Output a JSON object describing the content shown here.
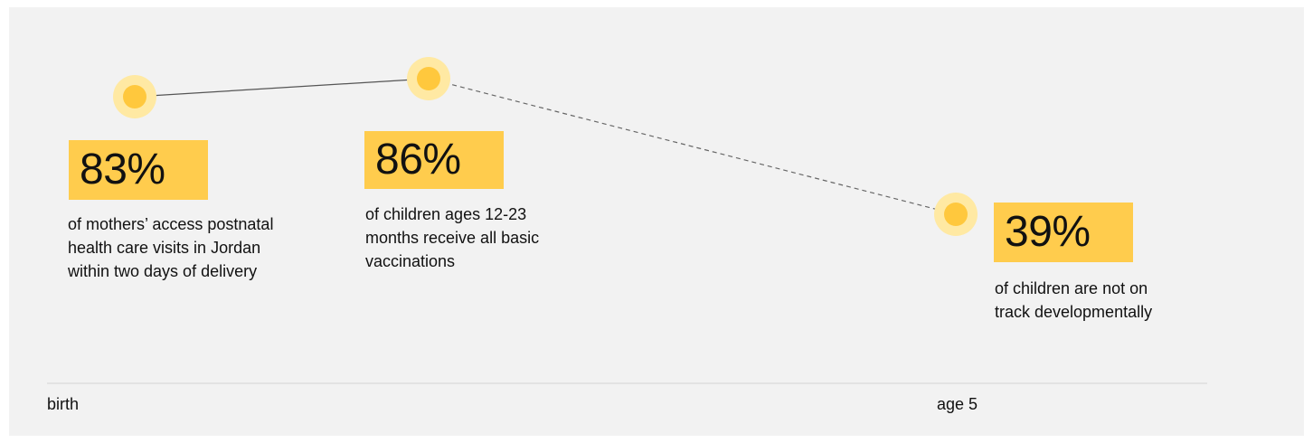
{
  "chart_data": {
    "type": "line",
    "points": [
      {
        "value": "83%",
        "percent": 83,
        "description": [
          "of mothers’ access postnatal",
          "health care visits in Jordan",
          "within two days of delivery"
        ]
      },
      {
        "value": "86%",
        "percent": 86,
        "description": [
          "of children ages 12-23",
          "months receive all basic",
          "vaccinations"
        ]
      },
      {
        "value": "39%",
        "percent": 39,
        "description": [
          "of children are not on",
          "track developmentally"
        ]
      }
    ],
    "segments": [
      {
        "from": 0,
        "to": 1,
        "style": "solid"
      },
      {
        "from": 1,
        "to": 2,
        "style": "dashed"
      }
    ],
    "axis": {
      "start_label": "birth",
      "end_label": "age 5"
    }
  },
  "colors": {
    "accent": "#ffcc4d",
    "marker_halo": "#ffe9a3",
    "marker_core": "#ffc83d",
    "line": "#555555",
    "axis_line": "#d4d4d4",
    "background": "#f2f2f2"
  }
}
